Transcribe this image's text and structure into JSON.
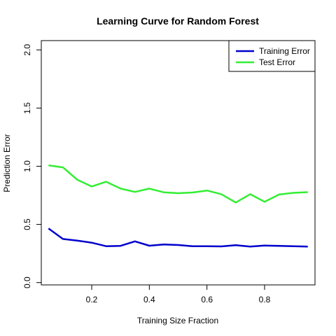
{
  "chart_data": {
    "type": "line",
    "title": "Learning Curve for Random Forest",
    "xlabel": "Training Size Fraction",
    "ylabel": "Prediction Error",
    "xlim": [
      0.025,
      0.975
    ],
    "ylim": [
      -0.02,
      2.08
    ],
    "x_ticks": [
      0.2,
      0.4,
      0.6,
      0.8
    ],
    "x_tick_labels": [
      "0.2",
      "0.4",
      "0.6",
      "0.8"
    ],
    "y_ticks": [
      0.0,
      0.5,
      1.0,
      1.5,
      2.0
    ],
    "y_tick_labels": [
      "0.0",
      "0.5",
      "1.0",
      "1.5",
      "2.0"
    ],
    "legend_position": "top-right",
    "x": [
      0.05,
      0.1,
      0.15,
      0.2,
      0.25,
      0.3,
      0.35,
      0.4,
      0.45,
      0.5,
      0.55,
      0.6,
      0.65,
      0.7,
      0.75,
      0.8,
      0.85,
      0.9,
      0.95
    ],
    "series": [
      {
        "name": "Training Error",
        "color": "#0000cd",
        "values": [
          0.465,
          0.375,
          0.36,
          0.343,
          0.313,
          0.316,
          0.354,
          0.317,
          0.328,
          0.323,
          0.313,
          0.313,
          0.311,
          0.322,
          0.31,
          0.318,
          0.315,
          0.312,
          0.31
        ]
      },
      {
        "name": "Test Error",
        "color": "#33ee33",
        "values": [
          1.007,
          0.99,
          0.884,
          0.826,
          0.867,
          0.808,
          0.779,
          0.808,
          0.776,
          0.768,
          0.774,
          0.791,
          0.76,
          0.688,
          0.76,
          0.694,
          0.757,
          0.771,
          0.777
        ]
      }
    ]
  }
}
